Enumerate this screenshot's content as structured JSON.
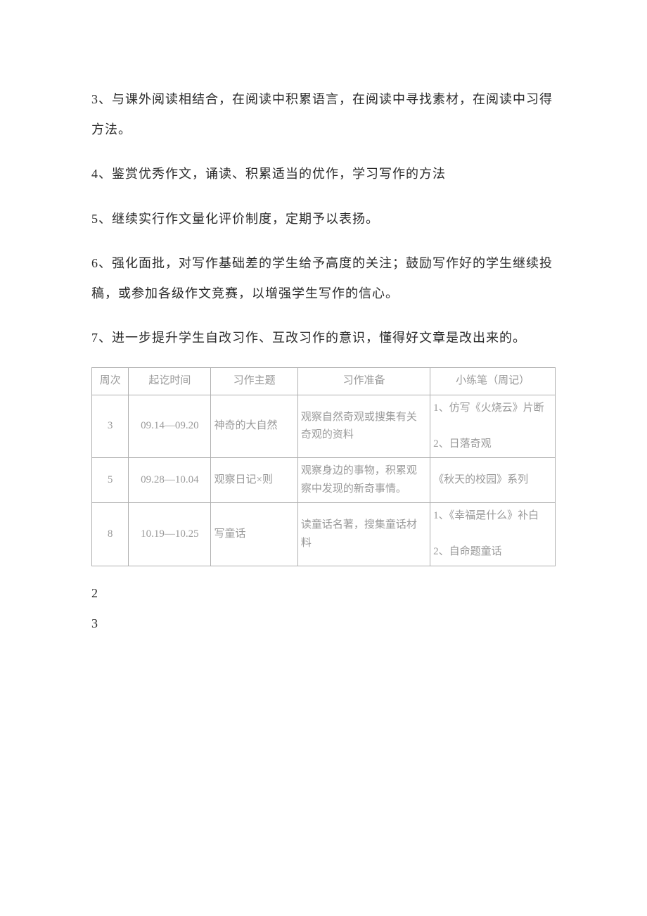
{
  "paragraphs": {
    "p3": "3、与课外阅读相结合，在阅读中积累语言，在阅读中寻找素材，在阅读中习得方法。",
    "p4": "4、鉴赏优秀作文，诵读、积累适当的优作，学习写作的方法",
    "p5": "5、继续实行作文量化评价制度，定期予以表扬。",
    "p6": "6、强化面批，对写作基础差的学生给予高度的关注；鼓励写作好的学生继续投稿，或参加各级作文竞赛，以增强学生写作的信心。",
    "p7": "7、进一步提升学生自改习作、互改习作的意识，懂得好文章是改出来的。"
  },
  "table": {
    "headers": {
      "week": "周次",
      "date": "起讫时间",
      "topic": "习作主题",
      "prep": "习作准备",
      "note": "小练笔（周记）"
    },
    "rows": [
      {
        "week": "3",
        "date": "09.14—09.20",
        "topic": "神奇的大自然",
        "prep": "观察自然奇观或搜集有关奇观的资料",
        "note": "1、仿写《火烧云》片断\n\n2、日落奇观"
      },
      {
        "week": "5",
        "date": "09.28—10.04",
        "topic": "观察日记×则",
        "prep": "观察身边的事物，积累观察中发现的新奇事情。",
        "note": "《秋天的校园》系列"
      },
      {
        "week": "8",
        "date": "10.19—10.25",
        "topic": "写童话",
        "prep": "读童话名著，搜集童话材料",
        "note": "1、《幸福是什么》补白\n\n2、自命题童话"
      }
    ]
  },
  "footer": {
    "n1": "2",
    "n2": "3"
  },
  "style": {
    "body_bg": "#ffffff",
    "text_color": "#2a2a2a",
    "table_text_color": "#9a9a9a",
    "border_color": "#b0b0b0",
    "body_fontsize": 18,
    "table_fontsize": 15
  }
}
